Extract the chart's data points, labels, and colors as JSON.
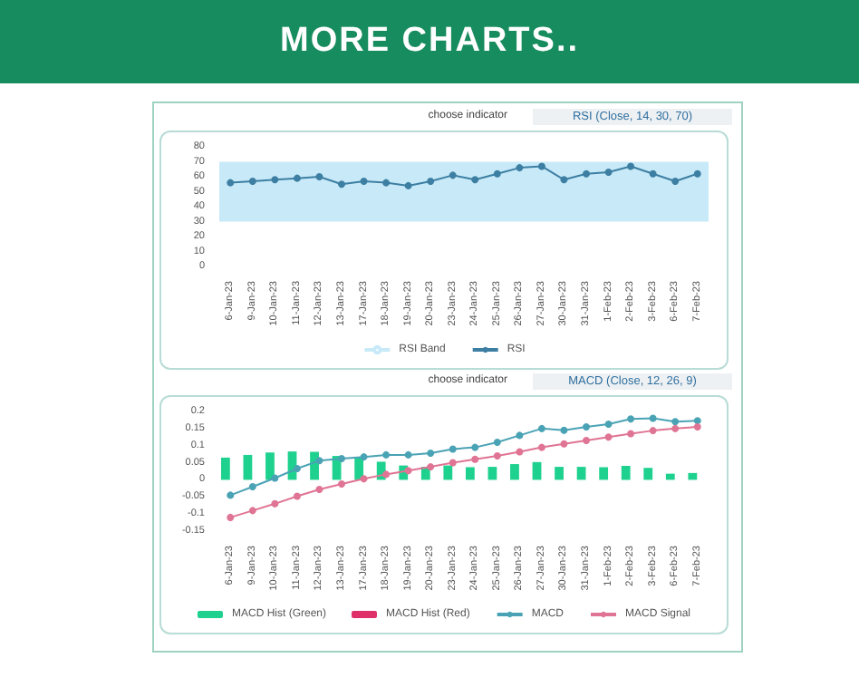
{
  "chart_data": [
    {
      "type": "line",
      "title": "MORE CHARTS..",
      "annotations": [
        "choose indicator",
        "RSI (Close, 14, 30, 70)"
      ],
      "categories": [
        "6-Jan-23",
        "9-Jan-23",
        "10-Jan-23",
        "11-Jan-23",
        "12-Jan-23",
        "13-Jan-23",
        "17-Jan-23",
        "18-Jan-23",
        "19-Jan-23",
        "20-Jan-23",
        "23-Jan-23",
        "24-Jan-23",
        "25-Jan-23",
        "26-Jan-23",
        "27-Jan-23",
        "30-Jan-23",
        "31-Jan-23",
        "1-Feb-23",
        "2-Feb-23",
        "3-Feb-23",
        "6-Feb-23",
        "7-Feb-23"
      ],
      "series": [
        {
          "name": "RSI",
          "color": "#3d7fa3",
          "values": [
            56,
            57,
            58,
            59,
            60,
            55,
            57,
            56,
            54,
            57,
            61,
            58,
            62,
            66,
            67,
            58,
            62,
            63,
            67,
            62,
            57,
            62
          ]
        }
      ],
      "bands": [
        {
          "axis": "y",
          "from": 30,
          "to": 70,
          "label": "RSI Band",
          "color": "#c8eaf8"
        }
      ],
      "ylim": [
        0,
        80
      ],
      "yticks": [
        0,
        10,
        20,
        30,
        40,
        50,
        60,
        70,
        80
      ],
      "grid": false,
      "legend": "bottom",
      "marker": "circle"
    },
    {
      "type": "line",
      "annotations": [
        "choose indicator",
        "MACD (Close, 12, 26, 9)"
      ],
      "categories": [
        "6-Jan-23",
        "9-Jan-23",
        "10-Jan-23",
        "11-Jan-23",
        "12-Jan-23",
        "13-Jan-23",
        "17-Jan-23",
        "18-Jan-23",
        "19-Jan-23",
        "20-Jan-23",
        "23-Jan-23",
        "24-Jan-23",
        "25-Jan-23",
        "26-Jan-23",
        "27-Jan-23",
        "30-Jan-23",
        "31-Jan-23",
        "1-Feb-23",
        "2-Feb-23",
        "3-Feb-23",
        "6-Feb-23",
        "7-Feb-23"
      ],
      "series": [
        {
          "name": "MACD Hist (Green)",
          "type": "bar",
          "color": "#1fd18f",
          "values": [
            0.065,
            0.073,
            0.08,
            0.083,
            0.082,
            0.07,
            0.065,
            0.053,
            0.042,
            0.038,
            0.042,
            0.037,
            0.038,
            0.046,
            0.052,
            0.038,
            0.038,
            0.037,
            0.041,
            0.035,
            0.018,
            0.02
          ]
        },
        {
          "name": "MACD Hist (Red)",
          "type": "bar",
          "color": "#e0306a",
          "values": [
            null,
            null,
            null,
            null,
            null,
            null,
            null,
            null,
            null,
            null,
            null,
            null,
            null,
            null,
            null,
            null,
            null,
            null,
            null,
            null,
            null,
            null
          ]
        },
        {
          "name": "MACD",
          "color": "#4aa3b5",
          "values": [
            -0.045,
            -0.02,
            0.005,
            0.033,
            0.056,
            0.062,
            0.067,
            0.073,
            0.073,
            0.078,
            0.09,
            0.095,
            0.11,
            0.13,
            0.15,
            0.145,
            0.155,
            0.163,
            0.178,
            0.18,
            0.17,
            0.173
          ]
        },
        {
          "name": "MACD Signal",
          "color": "#e07494",
          "values": [
            -0.11,
            -0.09,
            -0.07,
            -0.048,
            -0.028,
            -0.012,
            0.003,
            0.016,
            0.027,
            0.038,
            0.05,
            0.06,
            0.07,
            0.082,
            0.095,
            0.105,
            0.115,
            0.125,
            0.135,
            0.144,
            0.15,
            0.155
          ]
        }
      ],
      "ylim": [
        -0.15,
        0.2
      ],
      "yticks": [
        -0.15,
        -0.1,
        -0.05,
        0,
        0.05,
        0.1,
        0.15,
        0.2
      ],
      "grid": false,
      "legend": "bottom",
      "marker": "circle"
    }
  ]
}
